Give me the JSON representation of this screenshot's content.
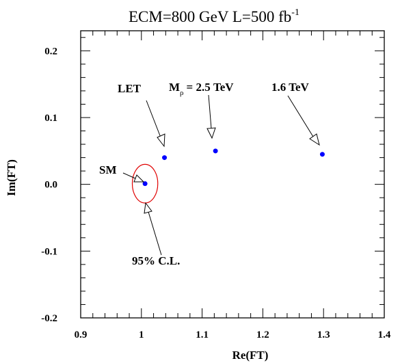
{
  "chart_data": {
    "type": "scatter",
    "title": {
      "main": "ECM=800 GeV  L=500 fb",
      "superscript": "-1"
    },
    "xlabel": "Re(FT)",
    "ylabel": "Im(FT)",
    "xlim": [
      0.9,
      1.4
    ],
    "ylim": [
      -0.2,
      0.23
    ],
    "x_ticks": [
      0.9,
      1.0,
      1.1,
      1.2,
      1.3,
      1.4
    ],
    "x_tick_labels": [
      "0.9",
      "1",
      "1.1",
      "1.2",
      "1.3",
      "1.4"
    ],
    "y_ticks": [
      -0.2,
      -0.1,
      0.0,
      0.1,
      0.2
    ],
    "y_tick_labels": [
      "-0.2",
      "-0.1",
      "0.0",
      "0.1",
      "0.2"
    ],
    "grid": false,
    "points": [
      {
        "label": "SM",
        "x": 1.006,
        "y": 0.001
      },
      {
        "label": "LET",
        "x": 1.038,
        "y": 0.04
      },
      {
        "label": "M_rho = 2.5 TeV",
        "x": 1.122,
        "y": 0.05
      },
      {
        "label": "1.6 TeV",
        "x": 1.298,
        "y": 0.045
      }
    ],
    "point_color": "#0000ff",
    "ellipse": {
      "label": "95% C.L.",
      "cx": 1.006,
      "cy": 0.001,
      "rx": 0.021,
      "ry": 0.029,
      "color": "#e00000"
    },
    "annotations": {
      "sm": "SM",
      "let": "LET",
      "mrho_prefix": "M",
      "mrho_sub": "ρ",
      "mrho_value": "= 2.5 TeV",
      "tev16": "1.6 TeV",
      "cl": "95% C.L."
    }
  }
}
